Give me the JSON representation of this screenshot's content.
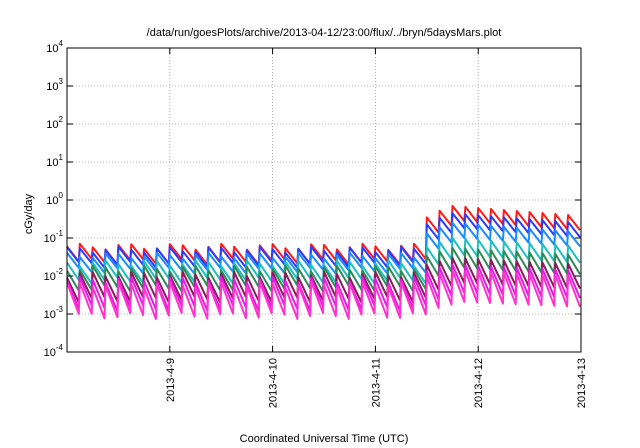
{
  "chart_data": {
    "type": "line",
    "title": "/data/run/goesPlots/archive/2013-04-12/23:00/flux/../bryn/5daysMars.plot",
    "xlabel": "Coordinated Universal Time (UTC)",
    "ylabel": "cGy/day",
    "y_scale": "log",
    "ylim": [
      0.0001,
      10000
    ],
    "xlim": [
      "2013-04-08 00:00",
      "2013-04-13 00:00"
    ],
    "x_tick_labels": [
      "2013-4-9",
      "2013-4-10",
      "2013-4-11",
      "2013-4-12",
      "2013-4-13"
    ],
    "y_tick_labels": [
      {
        "base": "10",
        "exp": "4"
      },
      {
        "base": "10",
        "exp": "3"
      },
      {
        "base": "10",
        "exp": "2"
      },
      {
        "base": "10",
        "exp": "1"
      },
      {
        "base": "10",
        "exp": "0"
      },
      {
        "base": "10",
        "exp": "-1"
      },
      {
        "base": "10",
        "exp": "-2"
      },
      {
        "base": "10",
        "exp": "-3"
      },
      {
        "base": "10",
        "exp": "-4"
      }
    ],
    "grid": true,
    "legend": "none",
    "series_style": "sawtooth",
    "sawtooth_period_hours": 3,
    "series": [
      {
        "color": "#ff1a1a",
        "quiet_level": 0.06,
        "active_level": 0.7,
        "decay_factor": 0.4
      },
      {
        "color": "#2c3cff",
        "quiet_level": 0.05,
        "active_level": 0.45,
        "decay_factor": 0.4
      },
      {
        "color": "#1a8cff",
        "quiet_level": 0.035,
        "active_level": 0.25,
        "decay_factor": 0.4
      },
      {
        "color": "#1fbfbf",
        "quiet_level": 0.022,
        "active_level": 0.1,
        "decay_factor": 0.35
      },
      {
        "color": "#2e8b57",
        "quiet_level": 0.016,
        "active_level": 0.055,
        "decay_factor": 0.3
      },
      {
        "color": "#8b1a5a",
        "quiet_level": 0.011,
        "active_level": 0.03,
        "decay_factor": 0.22
      },
      {
        "color": "#e61ae6",
        "quiet_level": 0.008,
        "active_level": 0.02,
        "decay_factor": 0.18
      },
      {
        "color": "#ff33cc",
        "quiet_level": 0.006,
        "active_level": 0.014,
        "decay_factor": 0.15
      }
    ],
    "activity_onset": "2013-04-11 12:00",
    "activity_peak": "2013-04-11 18:00"
  }
}
